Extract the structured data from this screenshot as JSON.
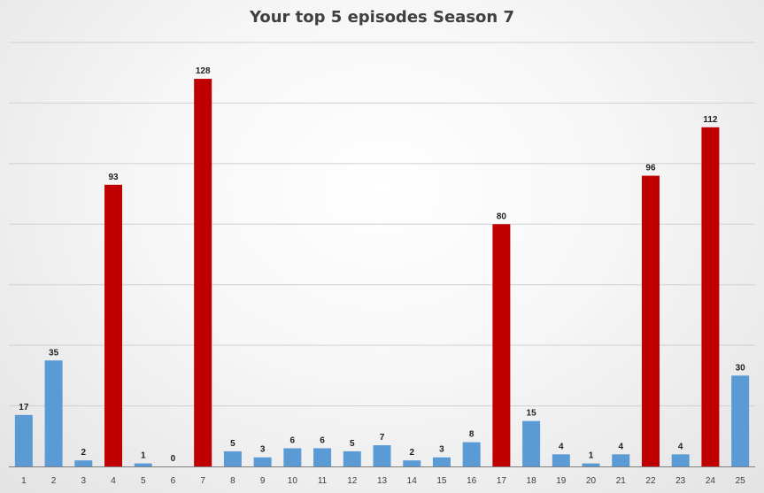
{
  "chart_data": {
    "type": "bar",
    "title": "Your top 5 episodes Season 7",
    "xlabel": "",
    "ylabel": "",
    "categories": [
      "1",
      "2",
      "3",
      "4",
      "5",
      "6",
      "7",
      "8",
      "9",
      "10",
      "11",
      "12",
      "13",
      "14",
      "15",
      "16",
      "17",
      "18",
      "19",
      "20",
      "21",
      "22",
      "23",
      "24",
      "25"
    ],
    "values": [
      17,
      35,
      2,
      93,
      1,
      0,
      128,
      5,
      3,
      6,
      6,
      5,
      7,
      2,
      3,
      8,
      80,
      15,
      4,
      1,
      4,
      96,
      4,
      112,
      30
    ],
    "highlighted_categories": [
      "4",
      "7",
      "17",
      "22",
      "24"
    ],
    "ylim": [
      0,
      140
    ],
    "grid_step": 20,
    "grid": true,
    "legend": "none",
    "colors": {
      "highlight": "#c00000",
      "normal": "#5b9bd5"
    }
  }
}
